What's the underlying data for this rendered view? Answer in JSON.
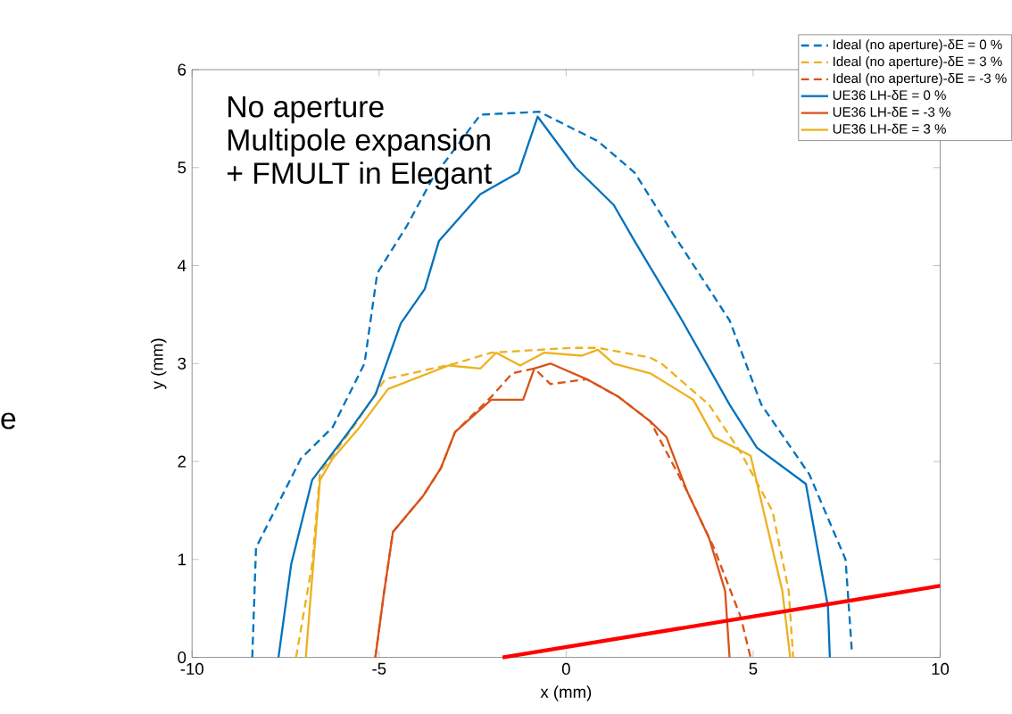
{
  "chart_data": {
    "type": "line",
    "xlabel": "x (mm)",
    "ylabel": "y (mm)",
    "xlim": [
      -10,
      10
    ],
    "ylim": [
      0,
      6
    ],
    "xticks": [
      -10,
      -5,
      0,
      5,
      10
    ],
    "yticks": [
      0,
      1,
      2,
      3,
      4,
      5,
      6
    ],
    "grid": false,
    "legend": "top right",
    "annotations": [
      "No aperture",
      "Multipole expansion",
      "+ FMULT in Elegant",
      "e"
    ],
    "series": [
      {
        "name": "Ideal (no aperture)-δE = 0 %",
        "color": "#0072bd",
        "line_style": "dashed",
        "x": [
          -8.39,
          -8.29,
          -7.09,
          -6.24,
          -5.39,
          -5.05,
          -4.25,
          -3.57,
          -2.29,
          -0.72,
          0.85,
          1.83,
          2.8,
          4.37,
          5.22,
          6.5,
          7.47,
          7.64
        ],
        "values": [
          0,
          1.12,
          2.03,
          2.35,
          3.0,
          3.92,
          4.41,
          4.89,
          5.54,
          5.57,
          5.27,
          4.95,
          4.36,
          3.44,
          2.58,
          1.87,
          1.0,
          0.06
        ]
      },
      {
        "name": "Ideal (no aperture)-δE = 3 %",
        "color": "#edb120",
        "line_style": "dashed",
        "x": [
          -7.22,
          -6.79,
          -6.58,
          -5.6,
          -4.84,
          -2.97,
          -2.0,
          0.13,
          0.85,
          2.25,
          2.55,
          3.82,
          4.67,
          5.52,
          5.95,
          6.07
        ],
        "values": [
          0,
          0.95,
          1.88,
          2.4,
          2.84,
          3.0,
          3.11,
          3.16,
          3.16,
          3.06,
          3.0,
          2.58,
          2.09,
          1.49,
          0.68,
          0
        ]
      },
      {
        "name": "Ideal (no aperture)-δE = -3 %",
        "color": "#d95319",
        "line_style": "dashed",
        "x": [
          -5.1,
          -4.88,
          -4.63,
          -3.82,
          -3.35,
          -2.97,
          -2.0,
          -1.44,
          -0.85,
          -0.42,
          0.55,
          1.4,
          2.25,
          3.23,
          3.95,
          4.67,
          4.93
        ],
        "values": [
          0,
          0.63,
          1.28,
          1.65,
          1.93,
          2.3,
          2.66,
          2.9,
          2.95,
          2.79,
          2.84,
          2.66,
          2.41,
          1.7,
          1.12,
          0.41,
          0
        ]
      },
      {
        "name": "UE36 LH-δE = 0 %",
        "color": "#0072bd",
        "line_style": "solid",
        "x": [
          -7.69,
          -7.35,
          -6.79,
          -5.82,
          -5.1,
          -4.42,
          -3.78,
          -3.4,
          -2.29,
          -1.27,
          -0.76,
          0.25,
          1.27,
          1.83,
          3.1,
          4.37,
          5.1,
          6.41,
          7.0,
          7.05
        ],
        "values": [
          0,
          0.95,
          1.81,
          2.3,
          2.68,
          3.41,
          3.76,
          4.25,
          4.73,
          4.95,
          5.52,
          5.0,
          4.62,
          4.25,
          3.44,
          2.58,
          2.14,
          1.77,
          0.52,
          0
        ]
      },
      {
        "name": "UE36 LH-δE = -3 %",
        "color": "#d95319",
        "line_style": "solid",
        "x": [
          -5.1,
          -4.88,
          -4.63,
          -3.82,
          -3.35,
          -2.97,
          -2.0,
          -1.15,
          -0.85,
          -0.42,
          0.55,
          1.4,
          2.25,
          2.68,
          3.23,
          3.82,
          4.25,
          4.37
        ],
        "values": [
          0,
          0.63,
          1.28,
          1.65,
          1.93,
          2.3,
          2.63,
          2.63,
          2.95,
          3.0,
          2.84,
          2.66,
          2.41,
          2.25,
          1.7,
          1.22,
          0.68,
          0
        ]
      },
      {
        "name": "UE36 LH-δE = 3 %",
        "color": "#edb120",
        "line_style": "solid",
        "x": [
          -6.96,
          -6.58,
          -6.24,
          -5.52,
          -4.76,
          -3.14,
          -2.29,
          -1.87,
          -1.23,
          -0.59,
          0.42,
          0.85,
          1.27,
          2.25,
          3.4,
          3.95,
          4.93,
          5.78,
          5.99
        ],
        "values": [
          0,
          1.81,
          2.03,
          2.35,
          2.74,
          2.98,
          2.95,
          3.11,
          2.98,
          3.11,
          3.08,
          3.14,
          3.0,
          2.9,
          2.63,
          2.25,
          2.06,
          0.68,
          0
        ]
      },
      {
        "color": "#ff0000",
        "line_style": "solid",
        "x": [
          -1.7,
          10
        ],
        "values": [
          0,
          0.73
        ]
      }
    ]
  }
}
